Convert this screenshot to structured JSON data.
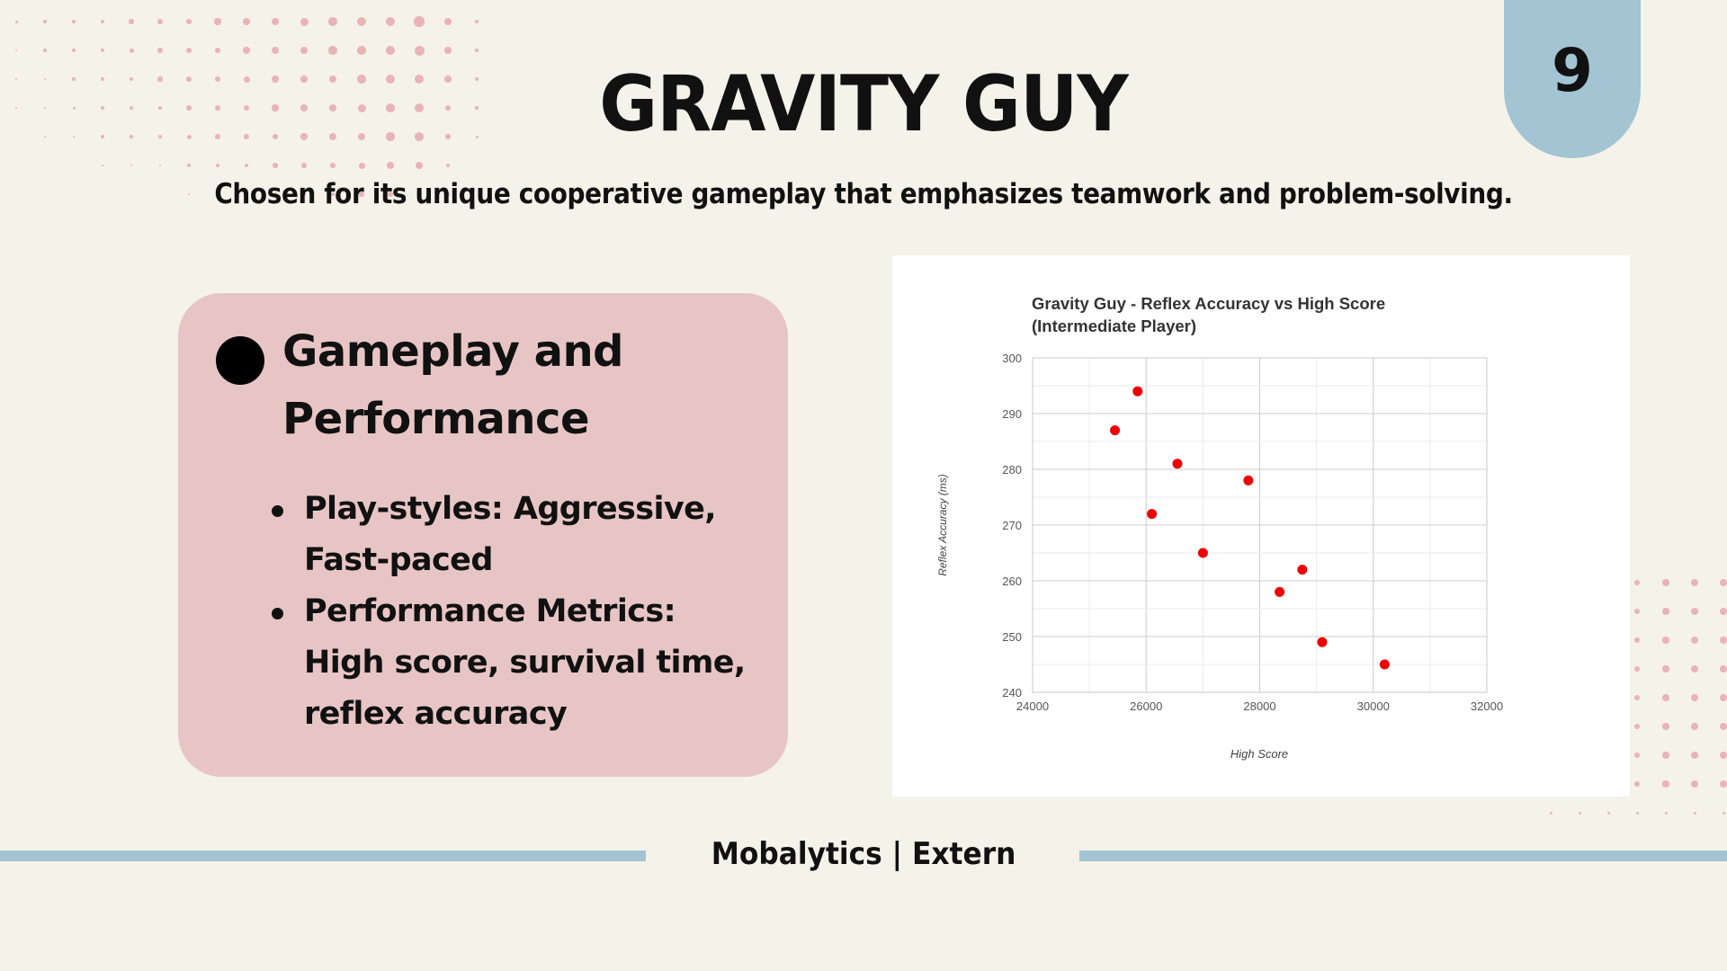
{
  "slide": {
    "title": "GRAVITY GUY",
    "subtitle": "Chosen for its unique cooperative gameplay that emphasizes teamwork and problem-solving.",
    "page_number": "9",
    "footer": "Mobalytics | Extern"
  },
  "card": {
    "heading_line1": "Gameplay and",
    "heading_line2": "Performance",
    "bullets": [
      "Play-styles: Aggressive, Fast-paced",
      "Performance Metrics: High score, survival time, reflex accuracy"
    ]
  },
  "colors": {
    "background": "#f5f2ea",
    "accent_blue": "#a3c4d3",
    "card_pink": "#e8c5c5",
    "dot_pink": "#e8b4b8",
    "point_red": "#ee0000"
  },
  "chart_data": {
    "type": "scatter",
    "title_line1": "Gravity Guy - Reflex Accuracy vs High Score",
    "title_line2": "(Intermediate Player)",
    "xlabel": "High Score",
    "ylabel": "Reflex Accuracy (ms)",
    "xlim": [
      24000,
      32000
    ],
    "ylim": [
      240,
      300
    ],
    "x_ticks": [
      24000,
      26000,
      28000,
      30000,
      32000
    ],
    "y_ticks": [
      240,
      250,
      260,
      270,
      280,
      290,
      300
    ],
    "grid": true,
    "legend": "none",
    "points": [
      {
        "x": 25450,
        "y": 287
      },
      {
        "x": 25850,
        "y": 294
      },
      {
        "x": 26100,
        "y": 272
      },
      {
        "x": 26550,
        "y": 281
      },
      {
        "x": 27000,
        "y": 265
      },
      {
        "x": 27800,
        "y": 278
      },
      {
        "x": 28350,
        "y": 258
      },
      {
        "x": 28750,
        "y": 262
      },
      {
        "x": 29100,
        "y": 249
      },
      {
        "x": 30200,
        "y": 245
      }
    ]
  }
}
